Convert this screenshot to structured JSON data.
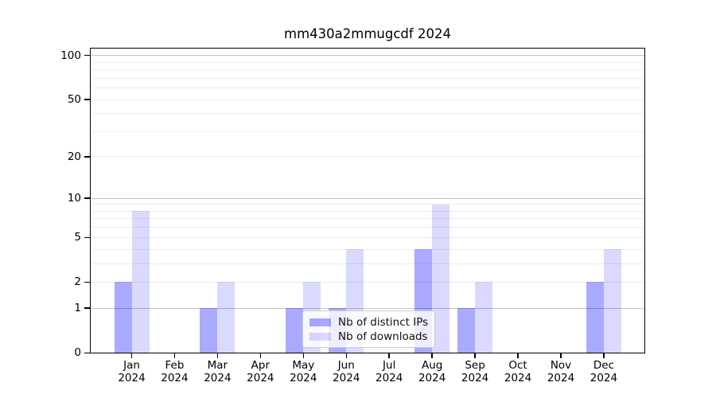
{
  "title": "mm430a2mmugcdf 2024",
  "chart_data": {
    "type": "bar",
    "title": "mm430a2mmugcdf 2024",
    "categories": [
      "Jan 2024",
      "Feb 2024",
      "Mar 2024",
      "Apr 2024",
      "May 2024",
      "Jun 2024",
      "Jul 2024",
      "Aug 2024",
      "Sep 2024",
      "Oct 2024",
      "Nov 2024",
      "Dec 2024"
    ],
    "series": [
      {
        "name": "Nb of distinct IPs",
        "color": "#A8A8FA",
        "color_css": "rgba(0,0,255,0.335)",
        "values": [
          2,
          0,
          1,
          0,
          1,
          1,
          0,
          4,
          1,
          0,
          0,
          2
        ]
      },
      {
        "name": "Nb of downloads",
        "color": "#DBDBFA",
        "color_css": "rgba(0,0,255,0.145)",
        "values": [
          8,
          0,
          2,
          0,
          2,
          4,
          0,
          9,
          2,
          0,
          0,
          4
        ]
      }
    ],
    "xlabel": "",
    "ylabel": "",
    "yscale": "log10(1+y)",
    "ylim": [
      0,
      113
    ],
    "yticks": [
      0,
      1,
      2,
      5,
      10,
      20,
      50,
      100
    ],
    "gridlines": {
      "major": [
        1,
        10,
        100
      ],
      "minor": [
        2,
        3,
        4,
        5,
        6,
        7,
        8,
        9,
        20,
        30,
        40,
        50,
        60,
        70,
        80,
        90
      ]
    },
    "grid": "on",
    "legend": {
      "position": "lower center",
      "entries": [
        "Nb of distinct IPs",
        "Nb of downloads"
      ]
    }
  },
  "colors": {
    "gridline_major": "#C2C2C2",
    "gridline_minor": "#ECECEC",
    "axis": "#000000",
    "legend_border": "#CCCCCC"
  }
}
